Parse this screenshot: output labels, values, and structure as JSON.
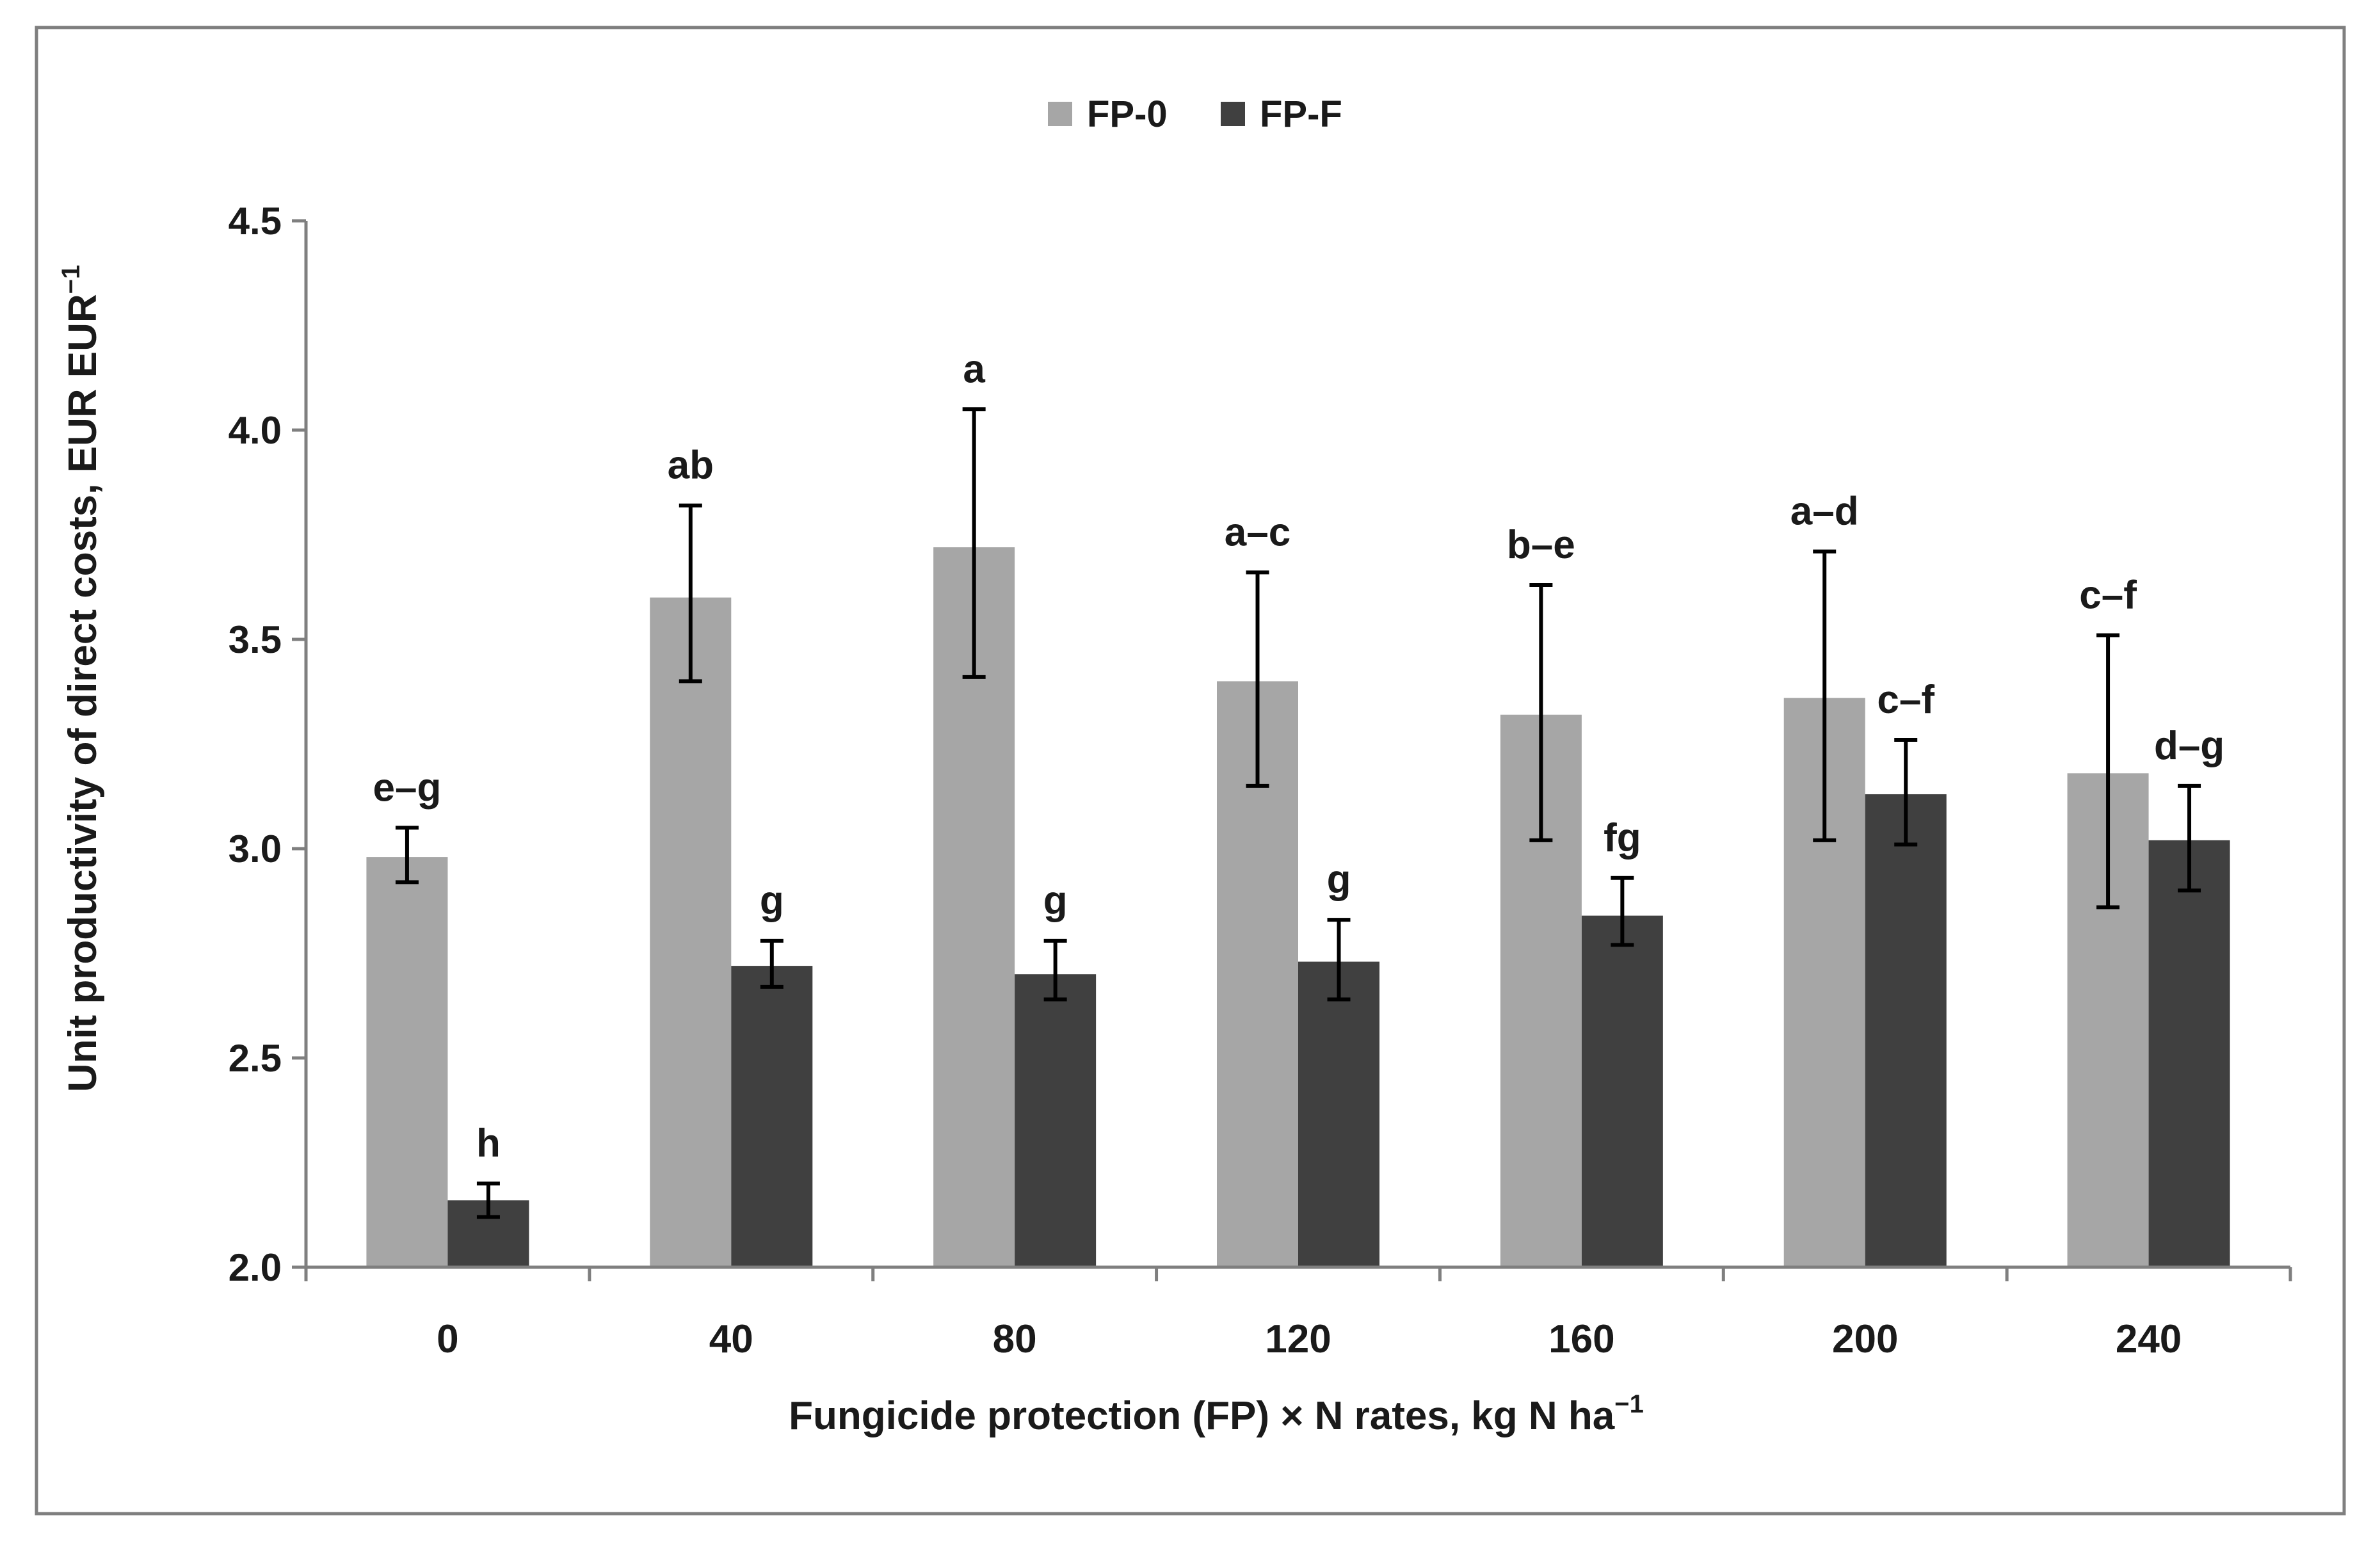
{
  "chart_data": {
    "type": "bar",
    "title": "",
    "xlabel": "Fungicide protection (FP) × N rates, kg N ha",
    "xlabel_sup": "−1",
    "ylabel": "Unit productivity of direct costs, EUR EUR",
    "ylabel_sup": "−1",
    "categories": [
      "0",
      "40",
      "80",
      "120",
      "160",
      "200",
      "240"
    ],
    "ylim": [
      2.0,
      4.5
    ],
    "yticks": [
      "2.0",
      "2.5",
      "3.0",
      "3.5",
      "4.0",
      "4.5"
    ],
    "grid": false,
    "legend_position": "top-center",
    "series": [
      {
        "name": "FP-0",
        "color": "#a6a6a6",
        "values": [
          2.98,
          3.6,
          3.72,
          3.4,
          3.32,
          3.36,
          3.18
        ],
        "err_low": [
          2.92,
          3.4,
          3.41,
          3.15,
          3.02,
          3.02,
          2.86
        ],
        "err_high": [
          3.05,
          3.82,
          4.05,
          3.66,
          3.63,
          3.71,
          3.51
        ],
        "labels": [
          "e–g",
          "ab",
          "a",
          "a–c",
          "b–e",
          "a–d",
          "c–f"
        ]
      },
      {
        "name": "FP-F",
        "color": "#404040",
        "values": [
          2.16,
          2.72,
          2.7,
          2.73,
          2.84,
          3.13,
          3.02
        ],
        "err_low": [
          2.12,
          2.67,
          2.64,
          2.64,
          2.77,
          3.01,
          2.9
        ],
        "err_high": [
          2.2,
          2.78,
          2.78,
          2.83,
          2.93,
          3.26,
          3.15
        ],
        "labels": [
          "h",
          "g",
          "g",
          "g",
          "fg",
          "c–f",
          "d–g"
        ]
      }
    ]
  }
}
